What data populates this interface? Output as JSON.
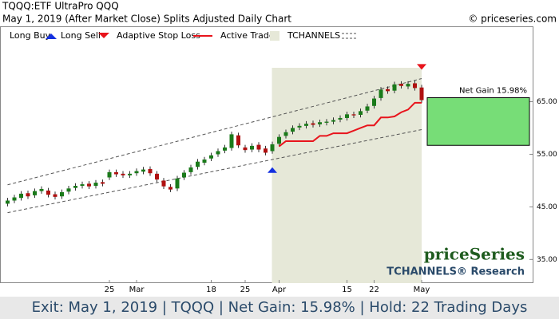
{
  "chart_data": {
    "type": "candlestick",
    "title": "TQQQ:ETF UltraPro QQQ",
    "subtitle": "May 1, 2019 (After Market Close)  Splits Adjusted Daily Chart",
    "source": "© priceseries.com",
    "categories": [
      null,
      null,
      null,
      null,
      null,
      null,
      null,
      null,
      null,
      null,
      null,
      null,
      null,
      null,
      null,
      "25",
      null,
      null,
      null,
      "Mar",
      null,
      null,
      null,
      null,
      null,
      null,
      null,
      null,
      null,
      null,
      "18",
      null,
      null,
      null,
      null,
      "25",
      null,
      null,
      null,
      null,
      "Apr",
      null,
      null,
      null,
      null,
      null,
      null,
      null,
      null,
      null,
      "15",
      null,
      null,
      null,
      "22",
      null,
      null,
      null,
      null,
      null,
      null,
      "May"
    ],
    "open": [
      45.6,
      46.2,
      46.7,
      47.6,
      47.2,
      48.0,
      48.1,
      47.4,
      47.0,
      47.9,
      48.6,
      49.0,
      49.4,
      49.0,
      49.7,
      50.6,
      51.6,
      51.3,
      51.0,
      51.4,
      51.7,
      52.2,
      51.3,
      50.0,
      48.8,
      48.5,
      50.6,
      51.6,
      52.6,
      53.4,
      54.2,
      55.0,
      55.7,
      56.2,
      58.6,
      56.3,
      55.9,
      56.8,
      56.1,
      55.6,
      57.0,
      58.5,
      59.3,
      60.1,
      60.4,
      60.9,
      60.7,
      61.0,
      61.2,
      61.6,
      61.9,
      62.6,
      62.5,
      63.3,
      64.2,
      65.7,
      67.4,
      67.1,
      68.4,
      67.9,
      68.5,
      67.7
    ],
    "high": [
      46.7,
      47.3,
      48.0,
      48.1,
      48.5,
      48.9,
      48.6,
      47.9,
      48.3,
      49.0,
      49.5,
      49.8,
      49.9,
      50.1,
      50.2,
      52.1,
      52.1,
      51.8,
      51.8,
      52.3,
      52.6,
      52.7,
      51.8,
      50.5,
      49.3,
      50.9,
      52.0,
      53.0,
      54.1,
      54.5,
      55.3,
      56.1,
      56.8,
      59.3,
      59.1,
      56.8,
      57.1,
      57.3,
      56.6,
      57.4,
      58.8,
      59.7,
      60.5,
      60.9,
      61.3,
      61.4,
      61.6,
      61.7,
      62.0,
      62.4,
      63.1,
      63.1,
      63.7,
      64.6,
      66.1,
      67.8,
      67.9,
      68.8,
      68.9,
      68.9,
      69.0,
      68.2
    ],
    "low": [
      45.1,
      45.7,
      46.2,
      46.5,
      46.7,
      47.5,
      46.8,
      46.4,
      46.5,
      47.4,
      48.1,
      48.5,
      48.4,
      48.5,
      48.9,
      50.1,
      50.7,
      50.5,
      50.5,
      50.9,
      51.2,
      50.9,
      49.7,
      48.4,
      47.8,
      48.0,
      50.1,
      51.1,
      52.1,
      52.9,
      53.7,
      54.5,
      55.2,
      55.7,
      56.2,
      55.3,
      55.4,
      55.4,
      54.8,
      55.1,
      56.5,
      58.0,
      58.8,
      59.6,
      59.9,
      60.1,
      60.2,
      60.5,
      60.7,
      61.1,
      61.4,
      61.9,
      62.0,
      62.8,
      63.7,
      65.2,
      66.5,
      66.6,
      67.5,
      67.4,
      67.1,
      64.8
    ],
    "close": [
      46.2,
      46.8,
      47.5,
      47.0,
      48.0,
      48.4,
      47.3,
      46.9,
      47.8,
      48.5,
      49.0,
      49.3,
      48.9,
      49.6,
      49.4,
      51.6,
      51.2,
      51.0,
      51.3,
      51.8,
      52.1,
      51.4,
      50.2,
      48.9,
      48.3,
      50.4,
      51.5,
      52.5,
      53.6,
      54.0,
      54.8,
      55.6,
      56.3,
      58.8,
      56.7,
      55.8,
      56.6,
      55.9,
      55.3,
      56.9,
      58.3,
      59.2,
      60.0,
      60.4,
      60.8,
      60.6,
      61.1,
      61.2,
      61.5,
      61.9,
      62.6,
      62.4,
      63.2,
      64.1,
      65.6,
      67.3,
      67.0,
      68.3,
      68.0,
      68.4,
      67.6,
      65.3
    ],
    "up_color": "#1a7a1a",
    "down_color": "#b01010",
    "ylim": [
      30.5,
      76
    ],
    "yticks": [
      {
        "value": 35,
        "label": "35.00"
      },
      {
        "value": 45,
        "label": "45.00"
      },
      {
        "value": 55,
        "label": "55.00"
      },
      {
        "value": 65,
        "label": "65.00"
      }
    ],
    "stop": {
      "name": "Adaptive Stop Loss",
      "color": "#e8141c",
      "values": [
        null,
        null,
        null,
        null,
        null,
        null,
        null,
        null,
        null,
        null,
        null,
        null,
        null,
        null,
        null,
        null,
        null,
        null,
        null,
        null,
        null,
        null,
        null,
        null,
        null,
        null,
        null,
        null,
        null,
        null,
        null,
        null,
        null,
        null,
        null,
        null,
        null,
        null,
        null,
        null,
        56.5,
        57.5,
        57.5,
        57.5,
        57.5,
        57.5,
        58.5,
        58.5,
        59.0,
        59.0,
        59.0,
        59.5,
        60.0,
        60.5,
        60.5,
        62.0,
        62.0,
        62.2,
        63.0,
        63.5,
        64.8,
        64.8
      ]
    },
    "buy": {
      "name": "Long Buy",
      "color": "#1430e0",
      "index": 39
    },
    "sell": {
      "name": "Long Sell",
      "color": "#e8141c",
      "index": 61
    },
    "active_trade": {
      "name": "Active Trade",
      "color": "#e6e8d8",
      "start": 40,
      "end": 61
    },
    "channel": {
      "name": "TCHANNELS",
      "x": [
        0,
        61
      ],
      "upper": [
        49.2,
        69.4
      ],
      "lower": [
        43.9,
        59.7
      ]
    },
    "net_gain": {
      "label": "Net Gain 15.98%",
      "entry": 56.7,
      "exit": 65.76,
      "color": "#77dd77"
    },
    "watermark": "priceSeries",
    "watermark2": "TCHANNELS® Research",
    "footer": "Exit: May 1, 2019 | TQQQ | Net Gain: 15.98% | Hold: 22 Trading Days"
  }
}
